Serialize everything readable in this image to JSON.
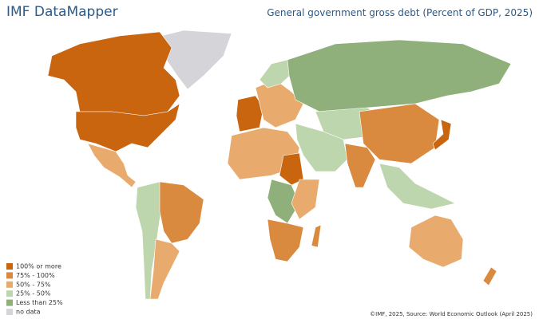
{
  "header": {
    "title": "IMF DataMapper",
    "subtitle": "General government gross debt (Percent of GDP, 2025)"
  },
  "legend": [
    {
      "label": "100% or more",
      "color": "#c9640f"
    },
    {
      "label": "75% - 100%",
      "color": "#da8a3f"
    },
    {
      "label": "50% - 75%",
      "color": "#e9aa6e"
    },
    {
      "label": "25% - 50%",
      "color": "#bdd6ad"
    },
    {
      "label": "Less than 25%",
      "color": "#8fb07a"
    },
    {
      "label": "no data",
      "color": "#d5d5d9"
    }
  ],
  "source": "©IMF, 2025, Source: World Economic Outlook (April 2025)"
}
